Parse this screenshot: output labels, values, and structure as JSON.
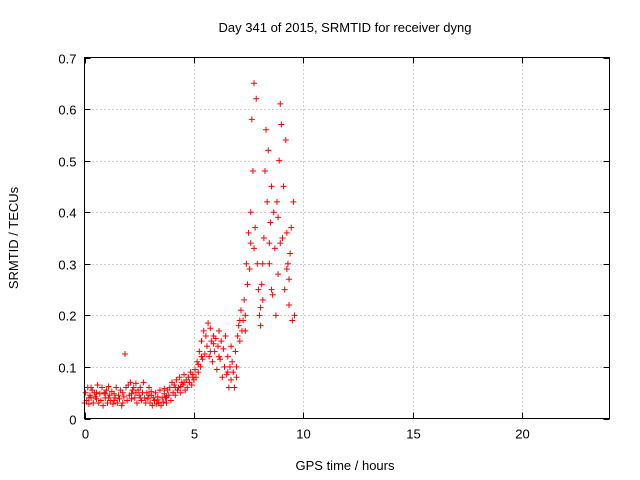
{
  "chart_data": {
    "type": "scatter",
    "title": "Day 341 of 2015, SRMTID for receiver dyng",
    "xlabel": "GPS time / hours",
    "ylabel": "SRMTID / TECUs",
    "xlim": [
      0,
      24
    ],
    "ylim": [
      0,
      0.7
    ],
    "xticks": [
      0,
      5,
      10,
      15,
      20
    ],
    "xtick_labels": [
      "0",
      "5",
      "10",
      "15",
      "20"
    ],
    "yticks": [
      0,
      0.1,
      0.2,
      0.3,
      0.4,
      0.5,
      0.6,
      0.7
    ],
    "ytick_labels": [
      "0",
      "0.1",
      "0.2",
      "0.3",
      "0.4",
      "0.5",
      "0.6",
      "0.7"
    ],
    "grid": true,
    "marker": "+",
    "series": [
      {
        "name": "SRMTID",
        "color": "#ff0000",
        "points": [
          [
            0.0,
            0.03
          ],
          [
            0.05,
            0.05
          ],
          [
            0.1,
            0.035
          ],
          [
            0.15,
            0.06
          ],
          [
            0.2,
            0.028
          ],
          [
            0.25,
            0.045
          ],
          [
            0.3,
            0.04
          ],
          [
            0.35,
            0.055
          ],
          [
            0.4,
            0.03
          ],
          [
            0.45,
            0.05
          ],
          [
            0.5,
            0.042
          ],
          [
            0.55,
            0.038
          ],
          [
            0.6,
            0.065
          ],
          [
            0.65,
            0.03
          ],
          [
            0.7,
            0.048
          ],
          [
            0.75,
            0.035
          ],
          [
            0.8,
            0.06
          ],
          [
            0.85,
            0.025
          ],
          [
            0.9,
            0.05
          ],
          [
            0.95,
            0.04
          ],
          [
            1.0,
            0.055
          ],
          [
            1.05,
            0.03
          ],
          [
            1.1,
            0.062
          ],
          [
            1.15,
            0.045
          ],
          [
            1.2,
            0.035
          ],
          [
            1.25,
            0.052
          ],
          [
            1.3,
            0.028
          ],
          [
            1.35,
            0.048
          ],
          [
            1.4,
            0.04
          ],
          [
            1.45,
            0.06
          ],
          [
            1.5,
            0.03
          ],
          [
            1.55,
            0.045
          ],
          [
            1.6,
            0.038
          ],
          [
            1.65,
            0.055
          ],
          [
            1.7,
            0.025
          ],
          [
            1.75,
            0.05
          ],
          [
            1.8,
            0.042
          ],
          [
            1.85,
            0.125
          ],
          [
            1.9,
            0.06
          ],
          [
            1.95,
            0.035
          ],
          [
            2.0,
            0.065
          ],
          [
            2.05,
            0.045
          ],
          [
            2.1,
            0.07
          ],
          [
            2.15,
            0.038
          ],
          [
            2.2,
            0.055
          ],
          [
            2.25,
            0.06
          ],
          [
            2.3,
            0.04
          ],
          [
            2.35,
            0.05
          ],
          [
            2.4,
            0.03
          ],
          [
            2.45,
            0.055
          ],
          [
            2.5,
            0.045
          ],
          [
            2.55,
            0.06
          ],
          [
            2.6,
            0.035
          ],
          [
            2.65,
            0.05
          ],
          [
            2.7,
            0.07
          ],
          [
            2.75,
            0.04
          ],
          [
            2.8,
            0.03
          ],
          [
            2.85,
            0.05
          ],
          [
            2.9,
            0.038
          ],
          [
            2.95,
            0.06
          ],
          [
            3.0,
            0.03
          ],
          [
            3.05,
            0.045
          ],
          [
            3.1,
            0.025
          ],
          [
            3.15,
            0.04
          ],
          [
            3.2,
            0.035
          ],
          [
            3.25,
            0.05
          ],
          [
            3.3,
            0.028
          ],
          [
            3.35,
            0.042
          ],
          [
            3.4,
            0.03
          ],
          [
            3.45,
            0.055
          ],
          [
            3.5,
            0.025
          ],
          [
            3.55,
            0.04
          ],
          [
            3.6,
            0.032
          ],
          [
            3.65,
            0.048
          ],
          [
            3.7,
            0.04
          ],
          [
            3.75,
            0.03
          ],
          [
            3.8,
            0.055
          ],
          [
            3.85,
            0.045
          ],
          [
            3.9,
            0.06
          ],
          [
            3.95,
            0.035
          ],
          [
            4.0,
            0.07
          ],
          [
            4.05,
            0.05
          ],
          [
            4.1,
            0.065
          ],
          [
            4.15,
            0.045
          ],
          [
            4.2,
            0.075
          ],
          [
            4.25,
            0.055
          ],
          [
            4.3,
            0.06
          ],
          [
            4.35,
            0.08
          ],
          [
            4.4,
            0.05
          ],
          [
            4.45,
            0.07
          ],
          [
            4.5,
            0.065
          ],
          [
            4.55,
            0.085
          ],
          [
            4.6,
            0.055
          ],
          [
            4.65,
            0.075
          ],
          [
            4.7,
            0.06
          ],
          [
            4.75,
            0.08
          ],
          [
            4.8,
            0.07
          ],
          [
            4.85,
            0.09
          ],
          [
            4.9,
            0.065
          ],
          [
            4.95,
            0.085
          ],
          [
            5.0,
            0.075
          ],
          [
            5.05,
            0.095
          ],
          [
            5.1,
            0.08
          ],
          [
            5.15,
            0.11
          ],
          [
            5.2,
            0.09
          ],
          [
            5.25,
            0.13
          ],
          [
            5.3,
            0.1
          ],
          [
            5.35,
            0.15
          ],
          [
            5.4,
            0.115
          ],
          [
            5.45,
            0.17
          ],
          [
            5.5,
            0.125
          ],
          [
            5.55,
            0.16
          ],
          [
            5.6,
            0.14
          ],
          [
            5.65,
            0.185
          ],
          [
            5.7,
            0.12
          ],
          [
            5.75,
            0.175
          ],
          [
            5.8,
            0.15
          ],
          [
            5.85,
            0.11
          ],
          [
            5.9,
            0.16
          ],
          [
            5.95,
            0.13
          ],
          [
            6.0,
            0.155
          ],
          [
            6.05,
            0.095
          ],
          [
            6.1,
            0.14
          ],
          [
            6.15,
            0.17
          ],
          [
            6.2,
            0.115
          ],
          [
            6.25,
            0.15
          ],
          [
            6.3,
            0.08
          ],
          [
            6.35,
            0.135
          ],
          [
            6.4,
            0.1
          ],
          [
            6.45,
            0.16
          ],
          [
            6.5,
            0.085
          ],
          [
            6.55,
            0.12
          ],
          [
            6.6,
            0.06
          ],
          [
            6.65,
            0.1
          ],
          [
            6.7,
            0.075
          ],
          [
            6.75,
            0.11
          ],
          [
            6.8,
            0.09
          ],
          [
            6.85,
            0.06
          ],
          [
            6.9,
            0.13
          ],
          [
            6.95,
            0.1
          ],
          [
            7.0,
            0.16
          ],
          [
            7.05,
            0.18
          ],
          [
            7.1,
            0.15
          ],
          [
            7.15,
            0.21
          ],
          [
            7.2,
            0.17
          ],
          [
            7.25,
            0.19
          ],
          [
            7.3,
            0.23
          ],
          [
            7.35,
            0.2
          ],
          [
            7.4,
            0.3
          ],
          [
            7.45,
            0.26
          ],
          [
            7.5,
            0.36
          ],
          [
            7.55,
            0.29
          ],
          [
            7.6,
            0.4
          ],
          [
            7.65,
            0.58
          ],
          [
            7.7,
            0.48
          ],
          [
            7.75,
            0.65
          ],
          [
            7.8,
            0.37
          ],
          [
            7.85,
            0.62
          ],
          [
            7.9,
            0.3
          ],
          [
            7.95,
            0.25
          ],
          [
            8.0,
            0.2
          ],
          [
            8.05,
            0.18
          ],
          [
            8.1,
            0.26
          ],
          [
            8.15,
            0.23
          ],
          [
            8.2,
            0.35
          ],
          [
            8.25,
            0.48
          ],
          [
            8.3,
            0.56
          ],
          [
            8.35,
            0.42
          ],
          [
            8.4,
            0.52
          ],
          [
            8.45,
            0.3
          ],
          [
            8.5,
            0.38
          ],
          [
            8.55,
            0.45
          ],
          [
            8.6,
            0.24
          ],
          [
            8.65,
            0.4
          ],
          [
            8.7,
            0.33
          ],
          [
            8.75,
            0.2
          ],
          [
            8.8,
            0.42
          ],
          [
            8.85,
            0.28
          ],
          [
            8.9,
            0.5
          ],
          [
            8.95,
            0.61
          ],
          [
            9.0,
            0.57
          ],
          [
            9.05,
            0.35
          ],
          [
            9.1,
            0.45
          ],
          [
            9.15,
            0.25
          ],
          [
            9.2,
            0.54
          ],
          [
            9.25,
            0.36
          ],
          [
            9.3,
            0.3
          ],
          [
            9.35,
            0.22
          ],
          [
            9.4,
            0.32
          ],
          [
            9.45,
            0.37
          ],
          [
            9.5,
            0.19
          ],
          [
            9.55,
            0.42
          ],
          [
            9.6,
            0.2
          ],
          [
            0.2,
            0.04
          ],
          [
            0.55,
            0.05
          ],
          [
            0.95,
            0.048
          ],
          [
            1.35,
            0.035
          ],
          [
            1.75,
            0.03
          ],
          [
            2.15,
            0.048
          ],
          [
            2.55,
            0.04
          ],
          [
            2.95,
            0.045
          ],
          [
            3.35,
            0.036
          ],
          [
            3.75,
            0.042
          ],
          [
            4.15,
            0.06
          ],
          [
            4.55,
            0.07
          ],
          [
            4.95,
            0.08
          ],
          [
            5.35,
            0.12
          ],
          [
            5.75,
            0.13
          ],
          [
            6.15,
            0.12
          ],
          [
            6.55,
            0.09
          ],
          [
            6.95,
            0.08
          ],
          [
            7.35,
            0.17
          ],
          [
            7.75,
            0.33
          ],
          [
            8.15,
            0.3
          ],
          [
            8.55,
            0.25
          ],
          [
            8.95,
            0.34
          ],
          [
            9.35,
            0.27
          ],
          [
            0.3,
            0.06
          ],
          [
            1.1,
            0.04
          ],
          [
            2.35,
            0.068
          ],
          [
            3.05,
            0.052
          ],
          [
            3.65,
            0.058
          ],
          [
            4.4,
            0.062
          ],
          [
            5.2,
            0.105
          ],
          [
            5.9,
            0.145
          ],
          [
            6.7,
            0.14
          ],
          [
            7.1,
            0.19
          ],
          [
            7.6,
            0.34
          ],
          [
            8.05,
            0.215
          ],
          [
            8.45,
            0.34
          ],
          [
            8.85,
            0.39
          ],
          [
            9.25,
            0.29
          ]
        ]
      }
    ]
  }
}
